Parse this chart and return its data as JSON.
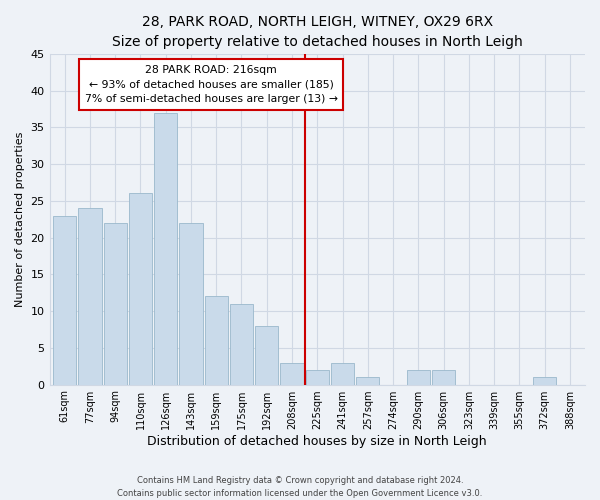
{
  "title": "28, PARK ROAD, NORTH LEIGH, WITNEY, OX29 6RX",
  "subtitle": "Size of property relative to detached houses in North Leigh",
  "xlabel": "Distribution of detached houses by size in North Leigh",
  "ylabel": "Number of detached properties",
  "bar_labels": [
    "61sqm",
    "77sqm",
    "94sqm",
    "110sqm",
    "126sqm",
    "143sqm",
    "159sqm",
    "175sqm",
    "192sqm",
    "208sqm",
    "225sqm",
    "241sqm",
    "257sqm",
    "274sqm",
    "290sqm",
    "306sqm",
    "323sqm",
    "339sqm",
    "355sqm",
    "372sqm",
    "388sqm"
  ],
  "bar_values": [
    23,
    24,
    22,
    26,
    37,
    22,
    12,
    11,
    8,
    3,
    2,
    3,
    1,
    0,
    2,
    2,
    0,
    0,
    0,
    1,
    0
  ],
  "bar_color": "#c9daea",
  "bar_edge_color": "#9ab8cc",
  "vline_x": 9.5,
  "vline_color": "#cc0000",
  "ylim": [
    0,
    45
  ],
  "yticks": [
    0,
    5,
    10,
    15,
    20,
    25,
    30,
    35,
    40,
    45
  ],
  "annotation_title": "28 PARK ROAD: 216sqm",
  "annotation_line1": "← 93% of detached houses are smaller (185)",
  "annotation_line2": "7% of semi-detached houses are larger (13) →",
  "annotation_box_color": "#ffffff",
  "annotation_box_edge": "#cc0000",
  "footer1": "Contains HM Land Registry data © Crown copyright and database right 2024.",
  "footer2": "Contains public sector information licensed under the Open Government Licence v3.0.",
  "background_color": "#eef2f7",
  "grid_color": "#d0d8e4",
  "title_fontsize": 10,
  "xlabel_fontsize": 9,
  "ylabel_fontsize": 8
}
